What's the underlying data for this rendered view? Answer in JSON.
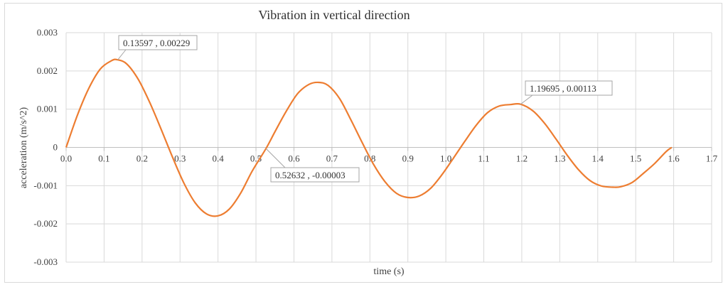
{
  "chart_data": {
    "type": "line",
    "title": "Vibration  in vertical direction",
    "xlabel": "time (s)",
    "ylabel": "acceleration  (m/s^2)",
    "xlim": [
      0.0,
      1.7
    ],
    "ylim": [
      -0.003,
      0.003
    ],
    "x_ticks": [
      "0.0",
      "0.1",
      "0.2",
      "0.3",
      "0.4",
      "0.5",
      "0.6",
      "0.7",
      "0.8",
      "0.9",
      "1.0",
      "1.1",
      "1.2",
      "1.3",
      "1.4",
      "1.5",
      "1.6",
      "1.7"
    ],
    "y_ticks": [
      "0.003",
      "0.002",
      "0.001",
      "0",
      "-0.001",
      "-0.002",
      "-0.003"
    ],
    "grid": true,
    "line_color": "#ED7D31",
    "series": [
      {
        "x": [
          0.0,
          0.03,
          0.06,
          0.09,
          0.12,
          0.13597,
          0.16,
          0.19,
          0.22,
          0.25,
          0.28,
          0.31,
          0.34,
          0.37,
          0.4,
          0.43,
          0.46,
          0.49,
          0.52632,
          0.55,
          0.58,
          0.61,
          0.64,
          0.665,
          0.69,
          0.72,
          0.75,
          0.78,
          0.81,
          0.84,
          0.87,
          0.9,
          0.93,
          0.96,
          0.99,
          1.02,
          1.05,
          1.08,
          1.11,
          1.14,
          1.17,
          1.19695,
          1.23,
          1.26,
          1.29,
          1.32,
          1.35,
          1.38,
          1.41,
          1.44,
          1.46,
          1.49,
          1.52,
          1.55,
          1.58,
          1.595
        ],
        "y": [
          0.0,
          0.00085,
          0.00155,
          0.00205,
          0.00227,
          0.00229,
          0.00218,
          0.00178,
          0.00118,
          0.00048,
          -0.00025,
          -0.00093,
          -0.00145,
          -0.00174,
          -0.00179,
          -0.00161,
          -0.00119,
          -0.00062,
          -3e-05,
          0.00041,
          0.00095,
          0.00141,
          0.00165,
          0.0017,
          0.00162,
          0.00128,
          0.00072,
          0.00012,
          -0.00045,
          -0.0009,
          -0.0012,
          -0.00131,
          -0.00127,
          -0.00107,
          -0.00071,
          -0.00028,
          0.00016,
          0.00058,
          0.00091,
          0.00108,
          0.00112,
          0.00113,
          0.00095,
          0.00063,
          0.00022,
          -0.00021,
          -0.00059,
          -0.00087,
          -0.00101,
          -0.00104,
          -0.00103,
          -0.00092,
          -0.00068,
          -0.00042,
          -0.00011,
          0.0
        ]
      }
    ],
    "annotations": [
      {
        "x": 0.13597,
        "y": 0.00229,
        "label": "0.13597 , 0.00229"
      },
      {
        "x": 0.52632,
        "y": -3e-05,
        "label": "0.52632 , -0.00003"
      },
      {
        "x": 1.19695,
        "y": 0.00113,
        "label": "1.19695 , 0.00113"
      }
    ]
  }
}
